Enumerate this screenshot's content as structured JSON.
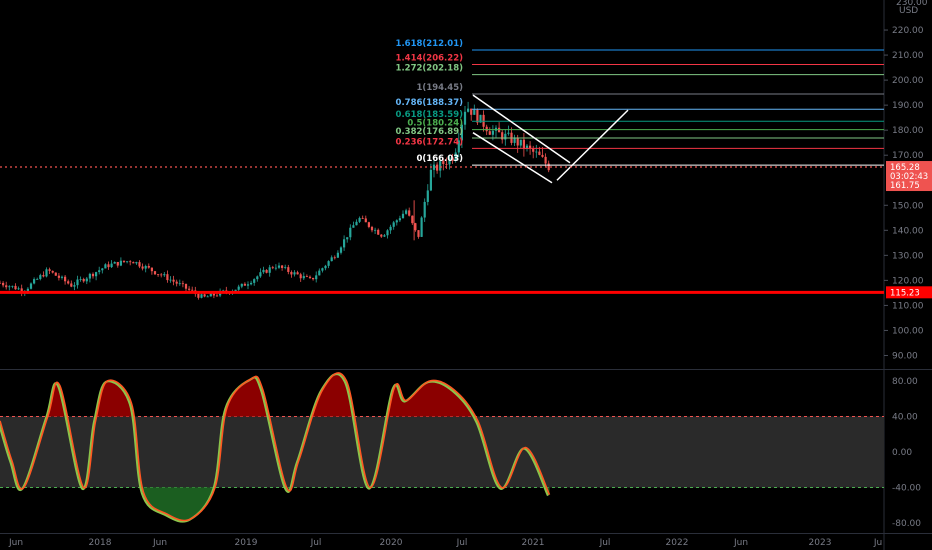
{
  "price_scale": {
    "currency": "USD",
    "top_label": "230.00",
    "ticks": [
      "220.00",
      "210.00",
      "200.00",
      "190.00",
      "180.00",
      "170.00",
      "150.00",
      "140.00",
      "130.00",
      "120.00",
      "110.00",
      "100.00",
      "90.00"
    ],
    "last_price": "165.28",
    "countdown": "03:02:43",
    "prev_price": "161.75",
    "support_level": "115.23"
  },
  "osc_scale": {
    "ticks": [
      "80.00",
      "40.00",
      "0.00",
      "-40.00",
      "-80.00"
    ]
  },
  "time_axis": [
    "Jun",
    "2018",
    "Jun",
    "2019",
    "Jul",
    "2020",
    "Jul",
    "2021",
    "Jul",
    "2022",
    "Jun",
    "2023",
    "Ju"
  ],
  "fib_levels": [
    {
      "label": "1.618(212.01)",
      "value": 212.01,
      "color": "#2196f3"
    },
    {
      "label": "1.414(206.22)",
      "value": 206.22,
      "color": "#f23645"
    },
    {
      "label": "1.272(202.18)",
      "value": 202.18,
      "color": "#81c784"
    },
    {
      "label": "1(194.45)",
      "value": 194.45,
      "color": "#787b86"
    },
    {
      "label": "0.786(188.37)",
      "value": 188.37,
      "color": "#64b5f6"
    },
    {
      "label": "0.618(183.59)",
      "value": 183.59,
      "color": "#089981"
    },
    {
      "label": "0.5(180.24)",
      "value": 180.24,
      "color": "#4caf50"
    },
    {
      "label": "0.382(176.89)",
      "value": 176.89,
      "color": "#81c784"
    },
    {
      "label": "0.236(172.74)",
      "value": 172.74,
      "color": "#f23645"
    },
    {
      "label": "0(166.03)",
      "value": 166.03,
      "color": "#ffffff"
    }
  ],
  "chart_data": [
    {
      "type": "candlestick",
      "title": "",
      "y_unit": "USD",
      "ylim": [
        85,
        232
      ],
      "x_range": [
        "2017-05",
        "2023-07"
      ],
      "approx_close_path": [
        {
          "x": "2017-05",
          "y": 119
        },
        {
          "x": "2017-07",
          "y": 116
        },
        {
          "x": "2017-09",
          "y": 124
        },
        {
          "x": "2017-11",
          "y": 118
        },
        {
          "x": "2018-02",
          "y": 126
        },
        {
          "x": "2018-04",
          "y": 128
        },
        {
          "x": "2018-07",
          "y": 121
        },
        {
          "x": "2018-10",
          "y": 113
        },
        {
          "x": "2019-01",
          "y": 117
        },
        {
          "x": "2019-04",
          "y": 126
        },
        {
          "x": "2019-07",
          "y": 120
        },
        {
          "x": "2019-09",
          "y": 130
        },
        {
          "x": "2019-11",
          "y": 145
        },
        {
          "x": "2020-01",
          "y": 138
        },
        {
          "x": "2020-03",
          "y": 148
        },
        {
          "x": "2020-04",
          "y": 137
        },
        {
          "x": "2020-05",
          "y": 163
        },
        {
          "x": "2020-07",
          "y": 170
        },
        {
          "x": "2020-08",
          "y": 190
        },
        {
          "x": "2020-10",
          "y": 180
        },
        {
          "x": "2020-12",
          "y": 176
        },
        {
          "x": "2021-02",
          "y": 170
        },
        {
          "x": "2021-03",
          "y": 165.28
        }
      ],
      "horizontal_levels": [
        166.03,
        115.23
      ]
    },
    {
      "type": "line",
      "title": "",
      "ylim": [
        -90,
        90
      ],
      "overbought": 40,
      "oversold": -40,
      "series": [
        {
          "color": "#ff5722",
          "values": [
            {
              "x": "2017-05",
              "y": 35
            },
            {
              "x": "2017-06",
              "y": -10
            },
            {
              "x": "2017-07",
              "y": -40
            },
            {
              "x": "2017-09",
              "y": 40
            },
            {
              "x": "2017-10",
              "y": 75
            },
            {
              "x": "2017-12",
              "y": -40
            },
            {
              "x": "2018-01",
              "y": 35
            },
            {
              "x": "2018-02",
              "y": 80
            },
            {
              "x": "2018-04",
              "y": 55
            },
            {
              "x": "2018-05",
              "y": -45
            },
            {
              "x": "2018-07",
              "y": -70
            },
            {
              "x": "2018-09",
              "y": -75
            },
            {
              "x": "2018-11",
              "y": -40
            },
            {
              "x": "2018-12",
              "y": 50
            },
            {
              "x": "2019-02",
              "y": 82
            },
            {
              "x": "2019-03",
              "y": 70
            },
            {
              "x": "2019-05",
              "y": -40
            },
            {
              "x": "2019-06",
              "y": -10
            },
            {
              "x": "2019-08",
              "y": 70
            },
            {
              "x": "2019-10",
              "y": 80
            },
            {
              "x": "2019-12",
              "y": -40
            },
            {
              "x": "2020-02",
              "y": 72
            },
            {
              "x": "2020-03",
              "y": 58
            },
            {
              "x": "2020-05",
              "y": 80
            },
            {
              "x": "2020-07",
              "y": 70
            },
            {
              "x": "2020-09",
              "y": 35
            },
            {
              "x": "2020-11",
              "y": -40
            },
            {
              "x": "2021-01",
              "y": 5
            },
            {
              "x": "2021-03",
              "y": -48
            }
          ]
        }
      ]
    }
  ]
}
